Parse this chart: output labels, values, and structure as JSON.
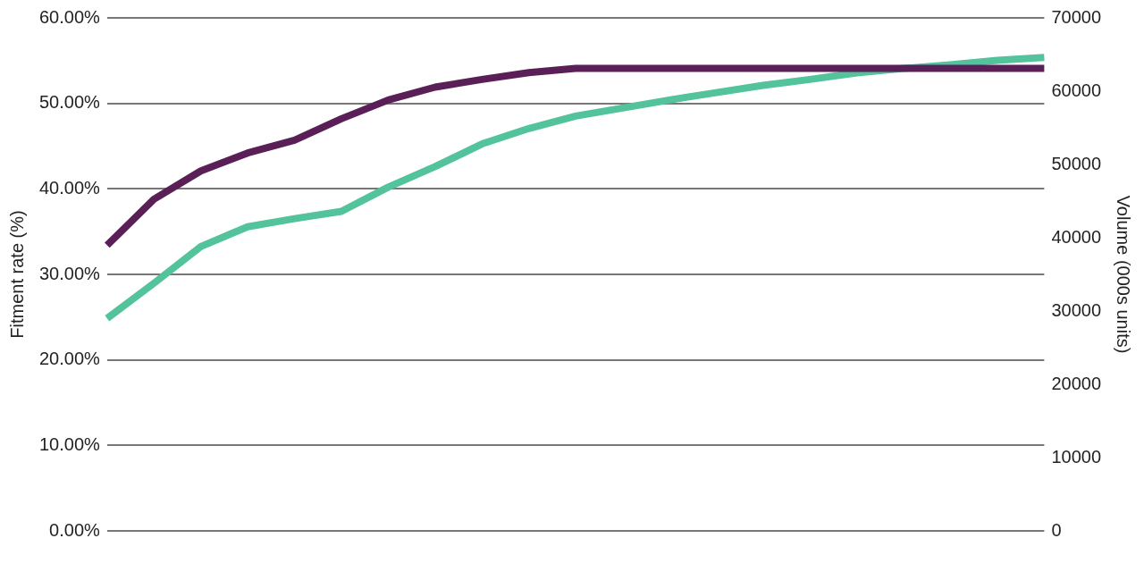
{
  "chart_data": {
    "type": "line",
    "ylabel": "Fitment rate (%)",
    "y2label": "Volume (000s units)",
    "categories": [
      null,
      null,
      null,
      null,
      null,
      null,
      null,
      null,
      null,
      null,
      null,
      null,
      null,
      null,
      null,
      null,
      null,
      null,
      null,
      null,
      null
    ],
    "series": [
      {
        "color": "#5b1f58",
        "values": [
          33.4,
          38.8,
          42.1,
          44.2,
          45.7,
          48.2,
          50.4,
          51.9,
          52.8,
          53.6,
          54.1,
          54.1,
          54.1,
          54.1,
          54.1,
          54.1,
          54.1,
          54.1,
          54.1,
          54.1,
          54.1
        ]
      },
      {
        "color": "#52c39b",
        "axis": "y2",
        "values": [
          29000,
          33800,
          38800,
          41500,
          42600,
          43600,
          46900,
          49700,
          52800,
          54900,
          56600,
          57700,
          58800,
          59800,
          60800,
          61600,
          62500,
          63100,
          63600,
          64200,
          64600
        ]
      }
    ],
    "ylim": [
      0,
      60
    ],
    "yticks": [
      {
        "value": 0,
        "label": "0.00%"
      },
      {
        "value": 10,
        "label": "10.00%"
      },
      {
        "value": 20,
        "label": "20.00%"
      },
      {
        "value": 30,
        "label": "30.00%"
      },
      {
        "value": 40,
        "label": "40.00%"
      },
      {
        "value": 50,
        "label": "50.00%"
      },
      {
        "value": 60,
        "label": "60.00%"
      }
    ],
    "y2lim": [
      0,
      70000
    ],
    "y2ticks": [
      0,
      10000,
      20000,
      30000,
      40000,
      50000,
      60000,
      70000
    ],
    "grid": "y",
    "legend": false,
    "marker": "none",
    "line_style": "solid"
  }
}
